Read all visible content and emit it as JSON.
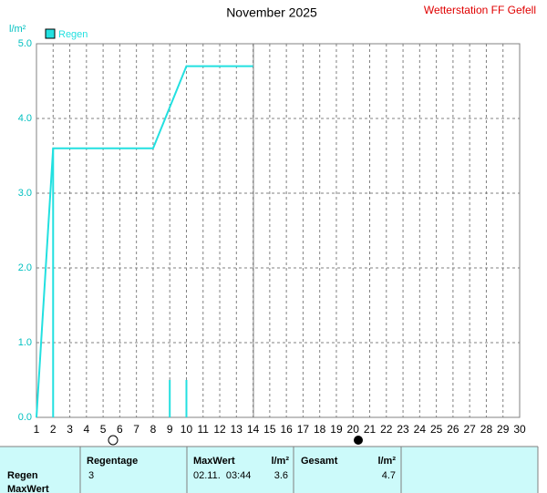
{
  "chart_data": {
    "type": "line",
    "title": "November 2025",
    "subtitle": "Wetterstation FF Gefell",
    "ylabel": "l/m²",
    "series": [
      {
        "name": "Regen",
        "color": "#22e0e0",
        "x": [
          1,
          2,
          8,
          10,
          14
        ],
        "values": [
          0,
          3.6,
          3.6,
          4.7,
          4.7
        ]
      }
    ],
    "daily": {
      "color": "#22e0e0",
      "x": [
        2,
        9,
        10
      ],
      "values": [
        3.6,
        0.5,
        0.5
      ]
    },
    "xlim": [
      1,
      30
    ],
    "xticks": [
      1,
      2,
      3,
      4,
      5,
      6,
      7,
      8,
      9,
      10,
      11,
      12,
      13,
      14,
      15,
      16,
      17,
      18,
      19,
      20,
      21,
      22,
      23,
      24,
      25,
      26,
      27,
      28,
      29,
      30
    ],
    "ylim": [
      0,
      5
    ],
    "yticks": [
      {
        "value": 0,
        "label": "0.0"
      },
      {
        "value": 1,
        "label": "1.0"
      },
      {
        "value": 2,
        "label": "2.0"
      },
      {
        "value": 3,
        "label": "3.0"
      },
      {
        "value": 4,
        "label": "4.0"
      },
      {
        "value": 5,
        "label": "5.0"
      }
    ],
    "grid": true
  },
  "table": {
    "headers": [
      "Regentage",
      "MaxWert",
      "l/m²",
      "Gesamt",
      "l/m²"
    ],
    "rows": [
      {
        "label": "Regen",
        "values": [
          3,
          "02.11.  03:44",
          3.6,
          4.7
        ]
      },
      {
        "label": "MaxWert"
      }
    ]
  }
}
